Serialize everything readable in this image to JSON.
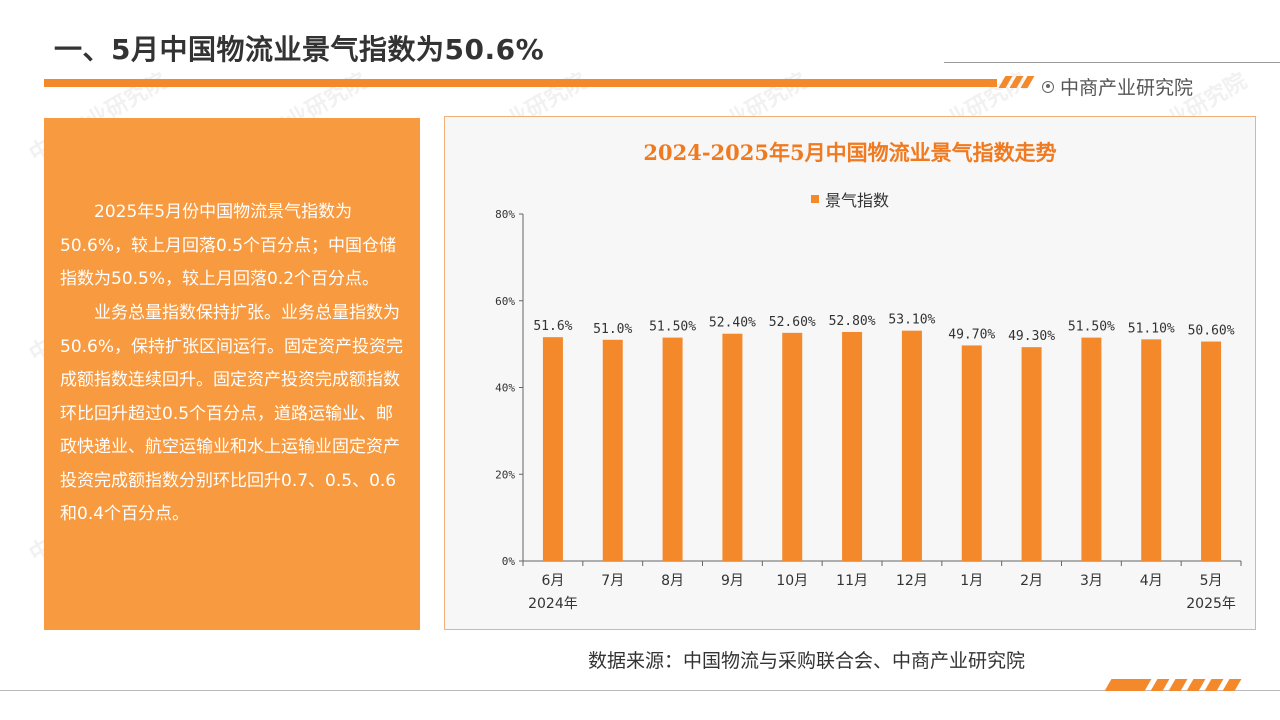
{
  "header": {
    "title": "一、5月中国物流业景气指数为50.6%",
    "brand": "中商产业研究院",
    "accent_color": "#f4892b"
  },
  "text_panel": {
    "paragraphs": [
      "2025年5月份中国物流景气指数为50.6%，较上月回落0.5个百分点；中国仓储指数为50.5%，较上月回落0.2个百分点。",
      "业务总量指数保持扩张。业务总量指数为50.6%，保持扩张区间运行。固定资产投资完成额指数连续回升。固定资产投资完成额指数环比回升超过0.5个百分点，道路运输业、邮政快递业、航空运输业和水上运输业固定资产投资完成额指数分别环比回升0.7、0.5、0.6和0.4个百分点。"
    ]
  },
  "chart_data": {
    "type": "bar",
    "title": "2024-2025年5月中国物流业景气指数走势",
    "categories": [
      "6月",
      "7月",
      "8月",
      "9月",
      "10月",
      "11月",
      "12月",
      "1月",
      "2月",
      "3月",
      "4月",
      "5月"
    ],
    "year_labels": [
      "2024年",
      "",
      "",
      "",
      "",
      "",
      "",
      "",
      "",
      "",
      "",
      "2025年"
    ],
    "series": [
      {
        "name": "景气指数",
        "values": [
          51.6,
          51.0,
          51.5,
          52.4,
          52.6,
          52.8,
          53.1,
          49.7,
          49.3,
          51.5,
          51.1,
          50.6
        ],
        "labels": [
          "51.6%",
          "51.0%",
          "51.50%",
          "52.40%",
          "52.60%",
          "52.80%",
          "53.10%",
          "49.70%",
          "49.30%",
          "51.50%",
          "51.10%",
          "50.60%"
        ],
        "color": "#f4892b"
      }
    ],
    "yticks": [
      "0%",
      "20%",
      "40%",
      "60%",
      "80%"
    ],
    "ylim": [
      0,
      80
    ],
    "legend": "top-center",
    "grid": false
  },
  "source": "数据来源：中国物流与采购联合会、中商产业研究院"
}
